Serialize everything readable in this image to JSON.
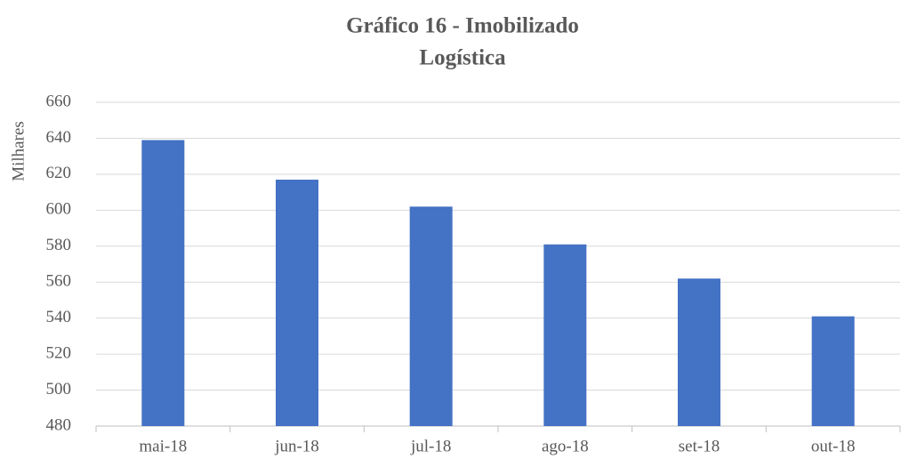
{
  "chart_data": {
    "type": "bar",
    "title": "Gráfico 16 - Imobilizado",
    "subtitle": "Logística",
    "ylabel": "Milhares",
    "categories": [
      "mai-18",
      "jun-18",
      "jul-18",
      "ago-18",
      "set-18",
      "out-18"
    ],
    "values": [
      639,
      617,
      602,
      581,
      562,
      541
    ],
    "color": "#4472c4",
    "ylim": [
      480,
      660
    ],
    "yticks": [
      480,
      500,
      520,
      540,
      560,
      580,
      600,
      620,
      640,
      660
    ],
    "grid": true
  }
}
